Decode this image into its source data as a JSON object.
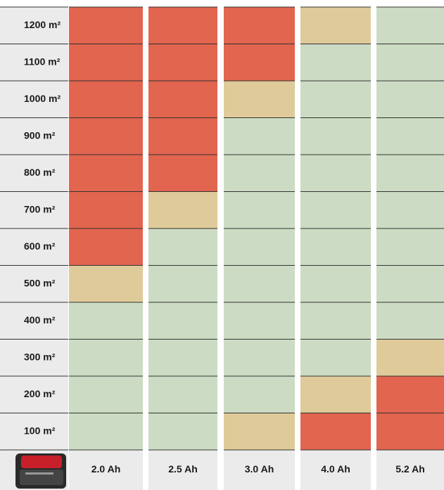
{
  "table": {
    "columns": [
      "2.0 Ah",
      "2.5 Ah",
      "3.0 Ah",
      "4.0 Ah",
      "5.2 Ah"
    ],
    "palette": {
      "R": "#e2654f",
      "B": "#dfcb9a",
      "G": "#ccdcc4"
    },
    "rows": [
      {
        "label": "1200 m²",
        "cells": [
          "R",
          "R",
          "R",
          "B",
          "G"
        ]
      },
      {
        "label": "1100 m²",
        "cells": [
          "R",
          "R",
          "R",
          "G",
          "G"
        ]
      },
      {
        "label": "1000 m²",
        "cells": [
          "R",
          "R",
          "B",
          "G",
          "G"
        ]
      },
      {
        "label": "900 m²",
        "cells": [
          "R",
          "R",
          "G",
          "G",
          "G"
        ]
      },
      {
        "label": "800 m²",
        "cells": [
          "R",
          "R",
          "G",
          "G",
          "G"
        ]
      },
      {
        "label": "700 m²",
        "cells": [
          "R",
          "B",
          "G",
          "G",
          "G"
        ]
      },
      {
        "label": "600 m²",
        "cells": [
          "R",
          "G",
          "G",
          "G",
          "G"
        ]
      },
      {
        "label": "500 m²",
        "cells": [
          "B",
          "G",
          "G",
          "G",
          "G"
        ]
      },
      {
        "label": "400 m²",
        "cells": [
          "G",
          "G",
          "G",
          "G",
          "G"
        ]
      },
      {
        "label": "300 m²",
        "cells": [
          "G",
          "G",
          "G",
          "G",
          "B"
        ]
      },
      {
        "label": "200 m²",
        "cells": [
          "G",
          "G",
          "G",
          "B",
          "R"
        ]
      },
      {
        "label": "100 m²",
        "cells": [
          "G",
          "G",
          "B",
          "R",
          "R"
        ]
      }
    ]
  }
}
